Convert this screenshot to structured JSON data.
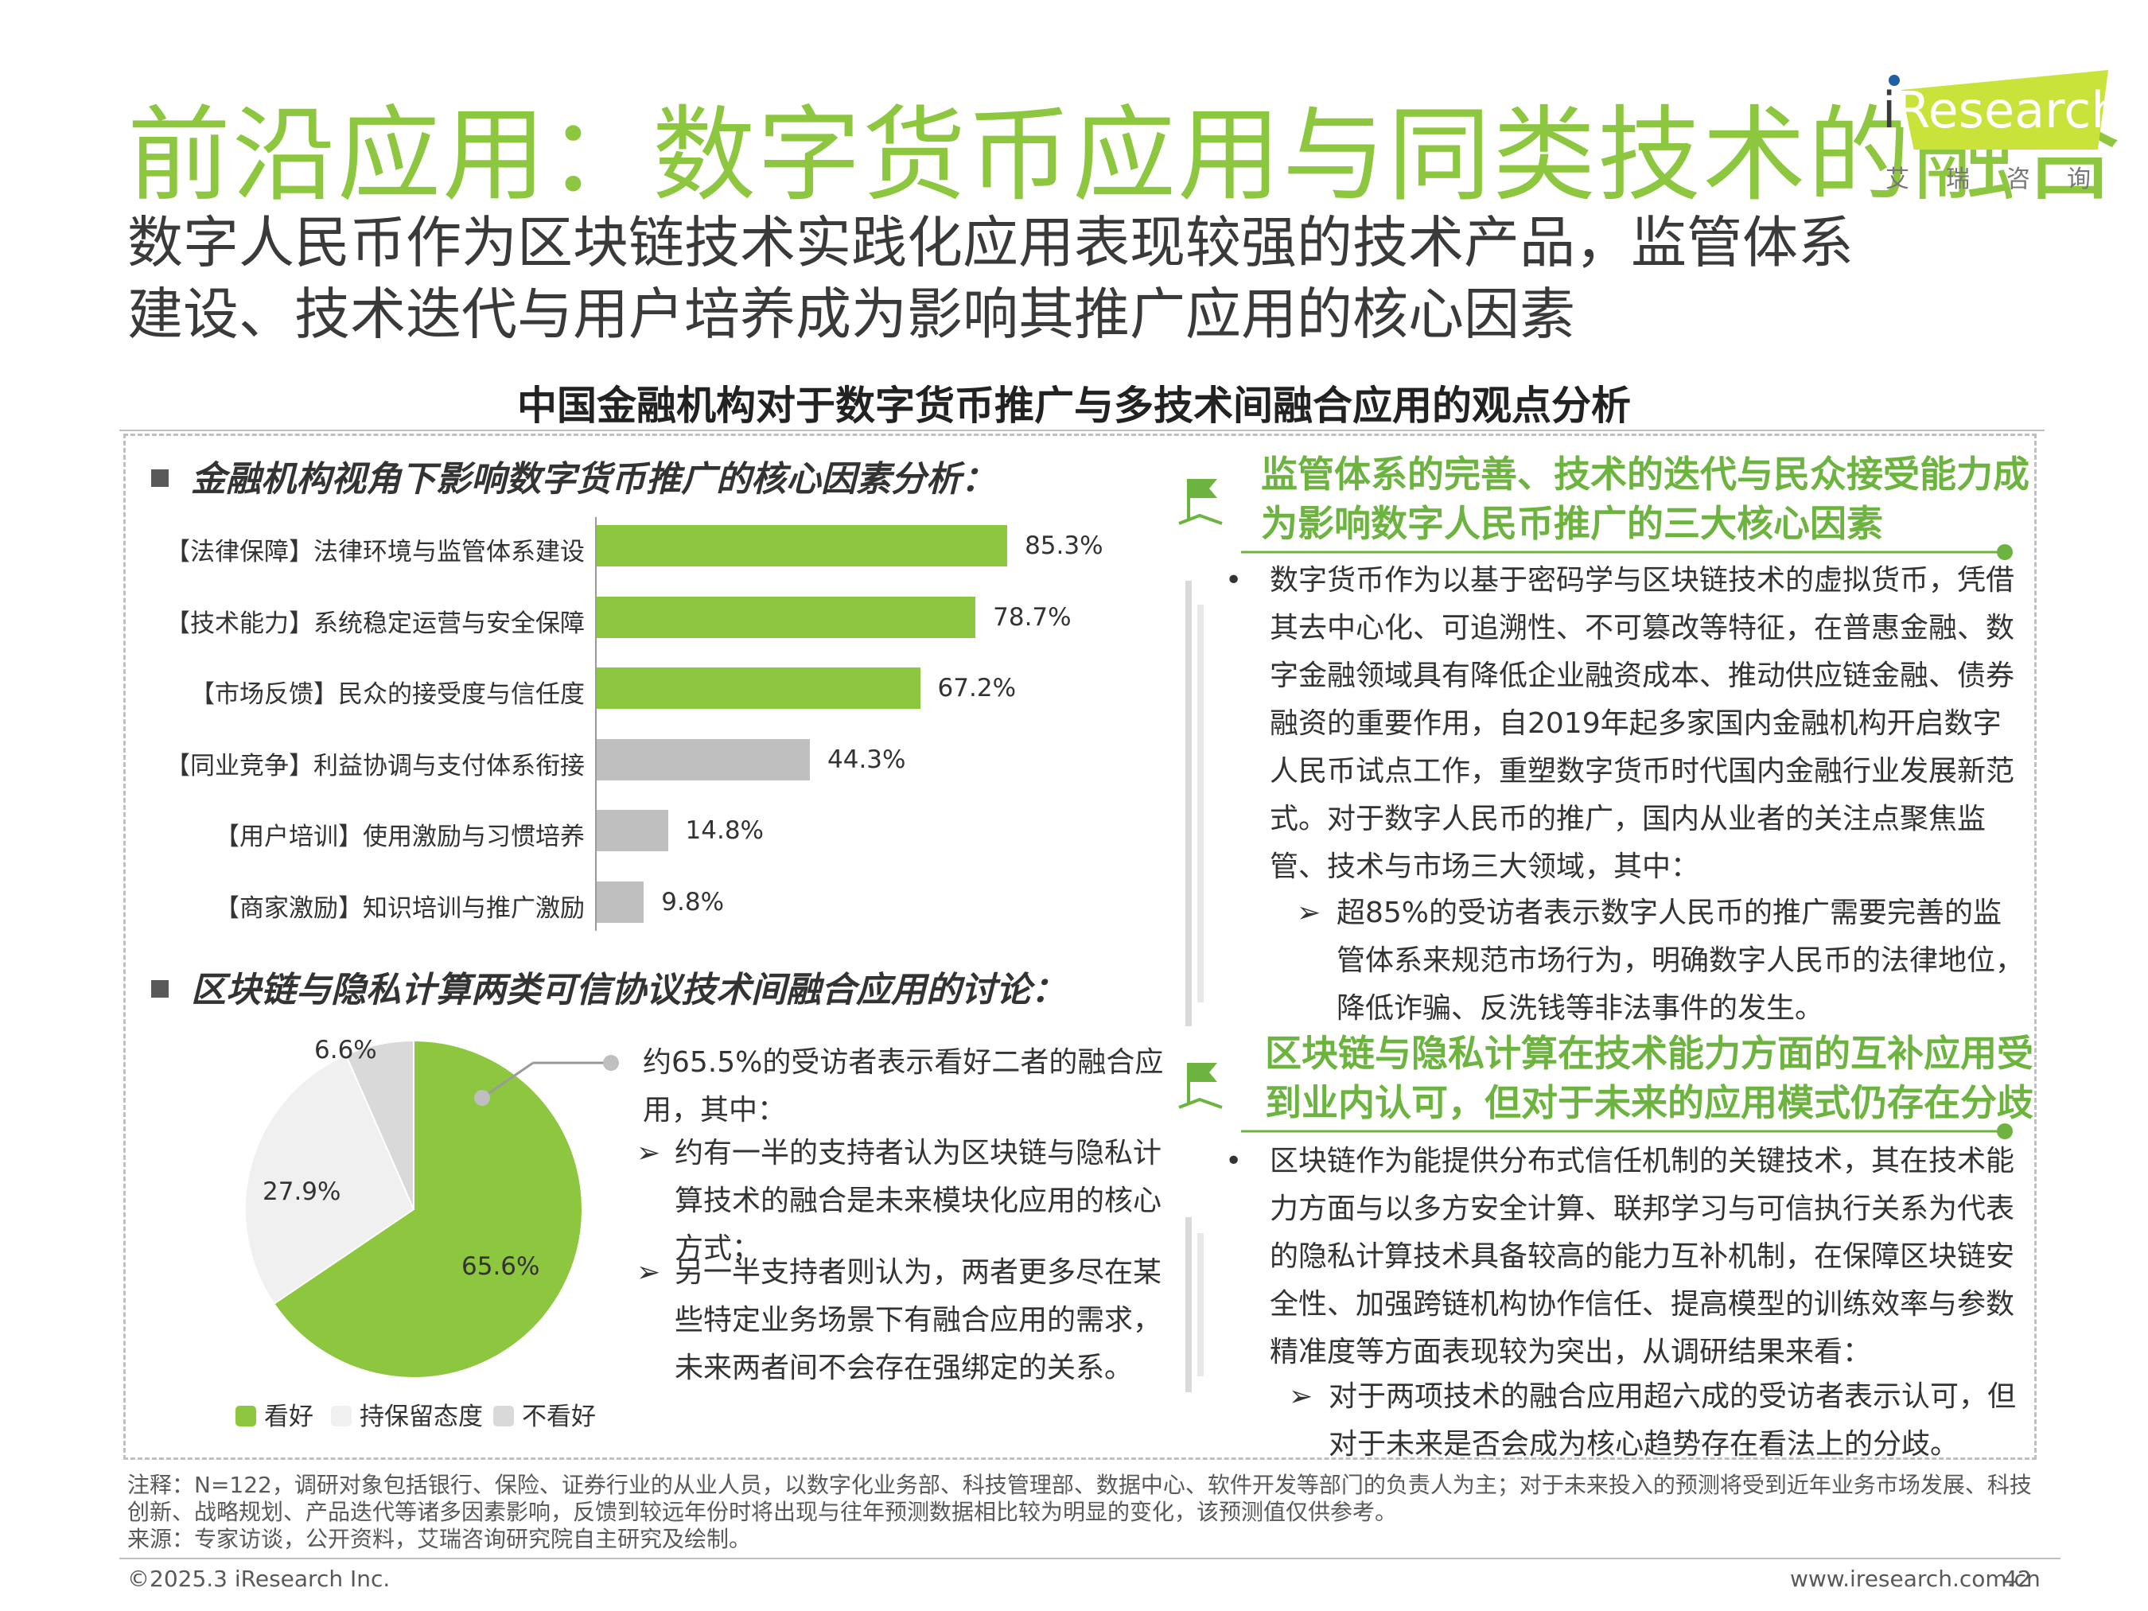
{
  "header": {
    "title": "前沿应用：数字货币应用与同类技术的融合",
    "subtitle_line1": "数字人民币作为区块链技术实践化应用表现较强的技术产品，监管体系",
    "subtitle_line2": "建设、技术迭代与用户培养成为影响其推广应用的核心因素",
    "logo_i": "i",
    "logo_text": "Research",
    "logo_sub": "艾瑞咨询"
  },
  "main_title": "中国金融机构对于数字货币推广与多技术间融合应用的观点分析",
  "section1": {
    "heading": "金融机构视角下影响数字货币推广的核心因素分析："
  },
  "section2": {
    "heading": "区块链与隐私计算两类可信协议技术间融合应用的讨论："
  },
  "chart_data": [
    {
      "type": "bar",
      "orientation": "horizontal",
      "categories": [
        "【法律保障】法律环境与监管体系建设",
        "【技术能力】系统稳定运营与安全保障",
        "【市场反馈】民众的接受度与信任度",
        "【同业竞争】利益协调与支付体系衔接",
        "【用户培训】使用激励与习惯培养",
        "【商家激励】知识培训与推广激励"
      ],
      "values": [
        85.3,
        78.7,
        67.2,
        44.3,
        14.8,
        9.8
      ],
      "value_labels": [
        "85.3%",
        "78.7%",
        "67.2%",
        "44.3%",
        "14.8%",
        "9.8%"
      ],
      "colors": [
        "#8dc63f",
        "#8dc63f",
        "#8dc63f",
        "#bfbfbf",
        "#bfbfbf",
        "#bfbfbf"
      ],
      "xlim": [
        0,
        100
      ]
    },
    {
      "type": "pie",
      "labels": [
        "看好",
        "持保留态度",
        "不看好"
      ],
      "values": [
        65.6,
        27.9,
        6.6
      ],
      "value_labels": [
        "65.6%",
        "27.9%",
        "6.6%"
      ],
      "colors": [
        "#8dc63f",
        "#f0f0f0",
        "#d9d9d9"
      ],
      "legend_position": "bottom"
    }
  ],
  "pie_callout": {
    "intro": "约65.5%的受访者表示看好二者的融合应用，其中：",
    "points": [
      "约有一半的支持者认为区块链与隐私计算技术的融合是未来模块化应用的核心方式；",
      "另一半支持者则认为，两者更多尽在某些特定业务场景下有融合应用的需求，未来两者间不会存在强绑定的关系。"
    ]
  },
  "right1": {
    "heading_line1": "监管体系的完善、技术的迭代与民众接受能力成",
    "heading_line2": "为影响数字人民币推广的三大核心因素",
    "bullet": "数字货币作为以基于密码学与区块链技术的虚拟货币，凭借其去中心化、可追溯性、不可篡改等特征，在普惠金融、数字金融领域具有降低企业融资成本、推动供应链金融、债券融资的重要作用，自2019年起多家国内金融机构开启数字人民币试点工作，重塑数字货币时代国内金融行业发展新范式。对于数字人民币的推广，国内从业者的关注点聚焦监管、技术与市场三大领域，其中：",
    "sub": "超85%的受访者表示数字人民币的推广需要完善的监管体系来规范市场行为，明确数字人民币的法律地位，降低诈骗、反洗钱等非法事件的发生。"
  },
  "right2": {
    "heading_line1": "区块链与隐私计算在技术能力方面的互补应用受",
    "heading_line2": "到业内认可，但对于未来的应用模式仍存在分歧",
    "bullet": "区块链作为能提供分布式信任机制的关键技术，其在技术能力方面与以多方安全计算、联邦学习与可信执行关系为代表的隐私计算技术具备较高的能力互补机制，在保障区块链安全性、加强跨链机构协作信任、提高模型的训练效率与参数精准度等方面表现较为突出，从调研结果来看：",
    "sub": "对于两项技术的融合应用超六成的受访者表示认可，但对于未来是否会成为核心趋势存在看法上的分歧。"
  },
  "notes": {
    "line1": "注释：N=122，调研对象包括银行、保险、证券行业的从业人员，以数字化业务部、科技管理部、数据中心、软件开发等部门的负责人为主；对于未来投入的预测将受到近年业务市场发展、科技创新、战略规划、产品迭代等诸多因素影响，反馈到较远年份时将出现与往年预测数据相比较为明显的变化，该预测值仅供参考。",
    "line2": "来源：专家访谈，公开资料，艾瑞咨询研究院自主研究及绘制。"
  },
  "footer": {
    "copyright": "©2025.3 iResearch Inc.",
    "url": "www.iresearch.com.cn",
    "page": "42"
  }
}
